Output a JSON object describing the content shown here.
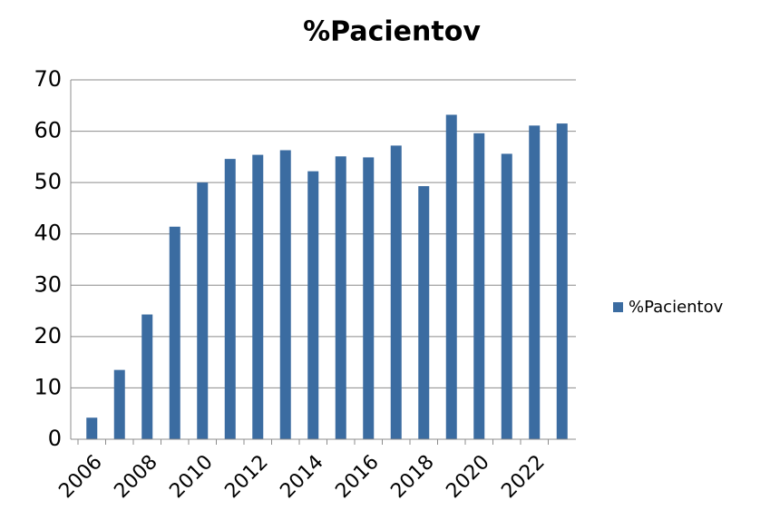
{
  "chart_data": {
    "type": "bar",
    "title": "%Pacientov",
    "categories": [
      "2006",
      null,
      "2008",
      null,
      "2010",
      null,
      "2012",
      null,
      "2014",
      null,
      "2016",
      null,
      "2018",
      null,
      "2020",
      null,
      "2022",
      null
    ],
    "series": [
      {
        "name": "%Pacientov",
        "color": "#3b6ca1",
        "values": [
          4.2,
          13.5,
          24.3,
          41.4,
          50,
          54.6,
          55.4,
          56.3,
          52.2,
          55.1,
          54.9,
          57.2,
          49.3,
          63.2,
          59.6,
          55.6,
          61.1,
          61.5
        ]
      }
    ],
    "ylim": [
      0,
      70
    ],
    "yticks": [
      0,
      10,
      20,
      30,
      40,
      50,
      60,
      70
    ],
    "grid": true,
    "legend": "right"
  }
}
